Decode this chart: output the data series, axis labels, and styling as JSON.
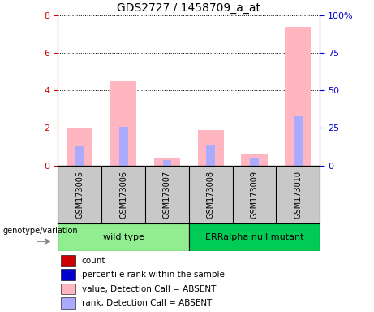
{
  "title": "GDS2727 / 1458709_a_at",
  "samples": [
    "GSM173005",
    "GSM173006",
    "GSM173007",
    "GSM173008",
    "GSM173009",
    "GSM173010"
  ],
  "pink_values": [
    2.0,
    4.5,
    0.35,
    1.9,
    0.65,
    7.4
  ],
  "blue_values": [
    13.0,
    26.0,
    3.5,
    13.5,
    4.5,
    33.0
  ],
  "ylim_left": [
    0,
    8
  ],
  "ylim_right": [
    0,
    100
  ],
  "yticks_left": [
    0,
    2,
    4,
    6,
    8
  ],
  "yticks_right": [
    0,
    25,
    50,
    75,
    100
  ],
  "ytick_labels_right": [
    "0",
    "25",
    "50",
    "75",
    "100%"
  ],
  "left_axis_color": "#CC0000",
  "right_axis_color": "#0000CC",
  "pink_color": "#FFB6C1",
  "blue_color": "#AAAAFF",
  "label_area_color": "#C8C8C8",
  "group1_color": "#90EE90",
  "group2_color": "#00CC55",
  "legend_items": [
    {
      "label": "count",
      "color": "#CC0000"
    },
    {
      "label": "percentile rank within the sample",
      "color": "#0000CC"
    },
    {
      "label": "value, Detection Call = ABSENT",
      "color": "#FFB6C1"
    },
    {
      "label": "rank, Detection Call = ABSENT",
      "color": "#AAAAFF"
    }
  ],
  "xlabel_annotation": "genotype/variation"
}
